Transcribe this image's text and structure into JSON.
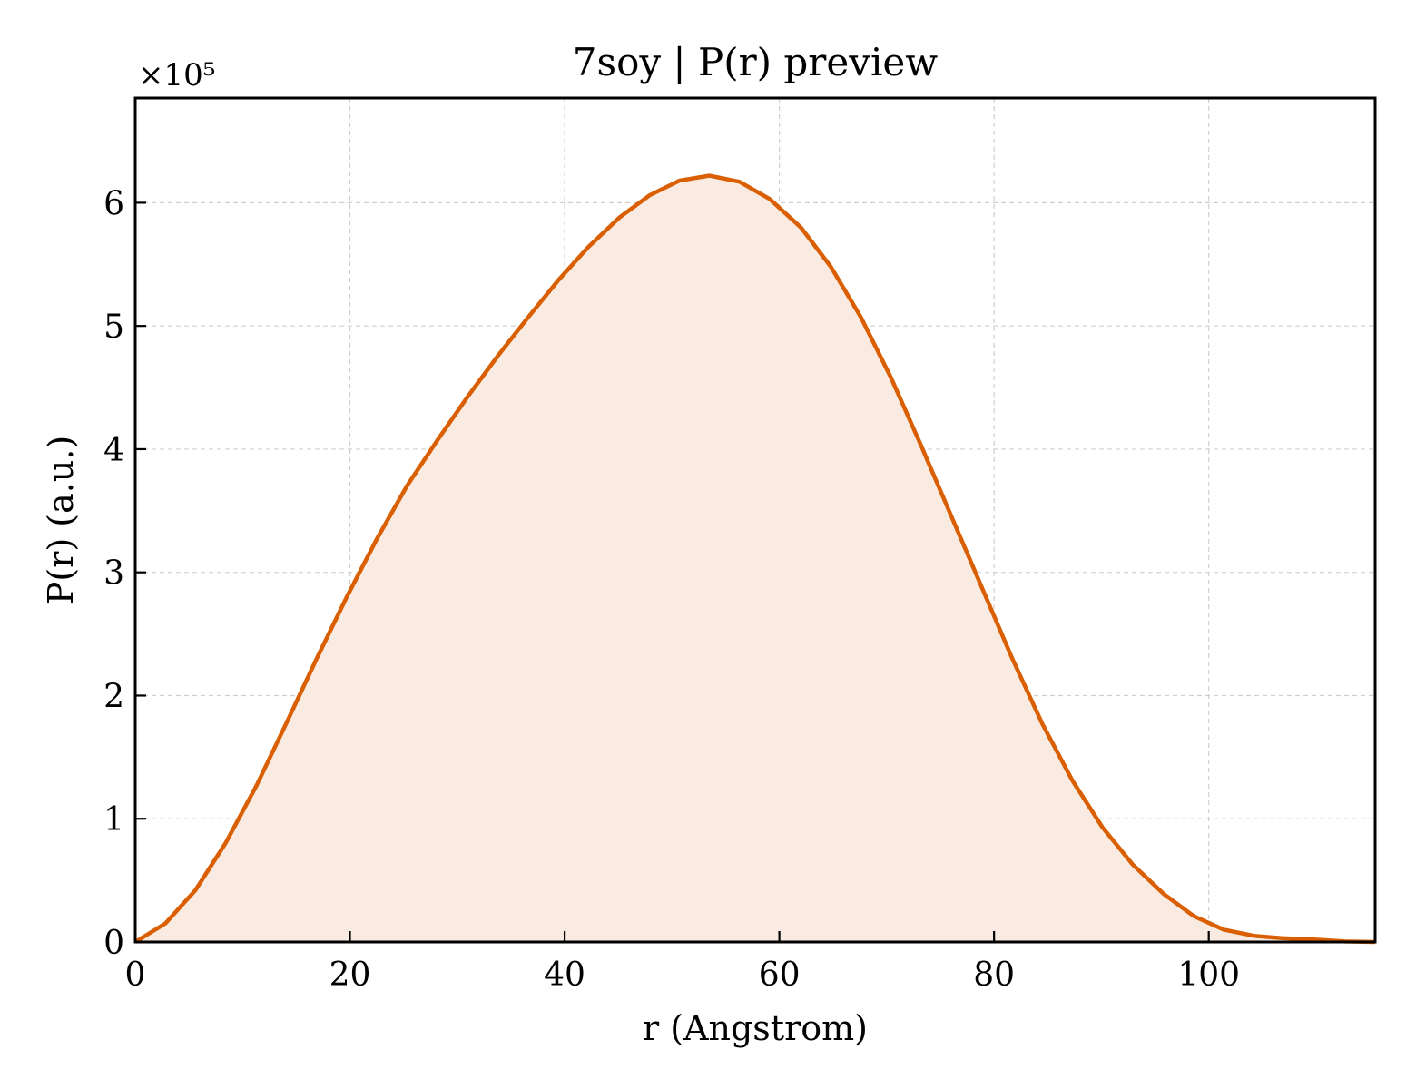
{
  "chart_data": {
    "type": "area",
    "title": "7soy | P(r) preview",
    "xlabel": "r (Angstrom)",
    "ylabel": "P(r) (a.u.)",
    "y_offset_label": "×10⁵",
    "xlim": [
      0,
      115.5
    ],
    "ylim": [
      0,
      6.85
    ],
    "y_scale": 100000,
    "xticks": [
      0,
      20,
      40,
      60,
      80,
      100
    ],
    "xtick_labels": [
      "0",
      "20",
      "40",
      "60",
      "80",
      "100"
    ],
    "yticks": [
      0,
      1,
      2,
      3,
      4,
      5,
      6
    ],
    "ytick_labels": [
      "0",
      "1",
      "2",
      "3",
      "4",
      "5",
      "6"
    ],
    "grid": true,
    "colors": {
      "line": "#d95f02",
      "fill": "#f9ebe1"
    },
    "series": [
      {
        "x": [
          0,
          2.8,
          5.6,
          8.4,
          11.3,
          14.1,
          16.9,
          19.7,
          22.5,
          25.3,
          28.2,
          31.0,
          33.8,
          36.6,
          39.4,
          42.2,
          45.1,
          47.9,
          50.7,
          53.5,
          56.3,
          59.1,
          62.0,
          64.8,
          67.6,
          70.4,
          73.2,
          76.0,
          78.9,
          81.7,
          84.5,
          87.3,
          90.1,
          92.9,
          95.8,
          98.6,
          101.4,
          104.2,
          107.0,
          109.8,
          112.7,
          115.5
        ],
        "y": [
          0.0,
          0.15,
          0.42,
          0.8,
          1.27,
          1.78,
          2.3,
          2.8,
          3.27,
          3.7,
          4.08,
          4.43,
          4.76,
          5.07,
          5.37,
          5.64,
          5.88,
          6.06,
          6.18,
          6.22,
          6.17,
          6.03,
          5.8,
          5.48,
          5.07,
          4.58,
          4.03,
          3.46,
          2.87,
          2.3,
          1.77,
          1.31,
          0.93,
          0.63,
          0.39,
          0.21,
          0.1,
          0.05,
          0.03,
          0.02,
          0.005,
          0.0
        ]
      }
    ]
  }
}
